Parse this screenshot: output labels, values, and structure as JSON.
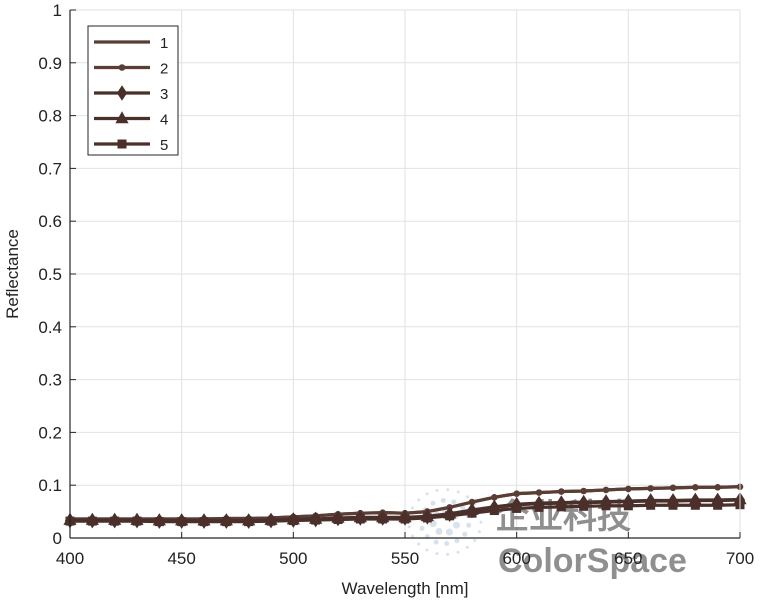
{
  "chart_data": {
    "type": "line",
    "xlabel": "Wavelength [nm]",
    "ylabel": "Reflectance",
    "xlim": [
      400,
      700
    ],
    "ylim": [
      0,
      1
    ],
    "xticks": [
      400,
      450,
      500,
      550,
      600,
      650,
      700
    ],
    "yticks": [
      0,
      0.1,
      0.2,
      0.3,
      0.4,
      0.5,
      0.6,
      0.7,
      0.8,
      0.9,
      1
    ],
    "ytick_labels": [
      "0",
      "0.1",
      "0.2",
      "0.3",
      "0.4",
      "0.5",
      "0.6",
      "0.7",
      "0.8",
      "0.9",
      "1"
    ],
    "grid": true,
    "legend_position": "top-left",
    "x": [
      400,
      410,
      420,
      430,
      440,
      450,
      460,
      470,
      480,
      490,
      500,
      510,
      520,
      530,
      540,
      550,
      560,
      570,
      580,
      590,
      600,
      610,
      620,
      630,
      640,
      650,
      660,
      670,
      680,
      690,
      700
    ],
    "series": [
      {
        "name": "1",
        "marker": "none",
        "color": "#5a3e36",
        "values": [
          0.036,
          0.036,
          0.036,
          0.036,
          0.036,
          0.036,
          0.036,
          0.037,
          0.037,
          0.038,
          0.04,
          0.042,
          0.045,
          0.047,
          0.048,
          0.047,
          0.05,
          0.058,
          0.068,
          0.077,
          0.084,
          0.086,
          0.088,
          0.089,
          0.091,
          0.093,
          0.094,
          0.095,
          0.096,
          0.096,
          0.097
        ]
      },
      {
        "name": "2",
        "marker": "circle",
        "color": "#5a3e36",
        "values": [
          0.036,
          0.036,
          0.036,
          0.036,
          0.036,
          0.036,
          0.036,
          0.037,
          0.037,
          0.038,
          0.04,
          0.042,
          0.045,
          0.047,
          0.048,
          0.047,
          0.05,
          0.058,
          0.068,
          0.077,
          0.084,
          0.086,
          0.088,
          0.089,
          0.091,
          0.093,
          0.094,
          0.095,
          0.096,
          0.096,
          0.097
        ]
      },
      {
        "name": "3",
        "marker": "diamond",
        "color": "#4a2f2a",
        "values": [
          0.033,
          0.033,
          0.033,
          0.033,
          0.032,
          0.032,
          0.032,
          0.032,
          0.032,
          0.033,
          0.034,
          0.035,
          0.037,
          0.038,
          0.038,
          0.038,
          0.04,
          0.045,
          0.052,
          0.058,
          0.063,
          0.065,
          0.066,
          0.067,
          0.068,
          0.069,
          0.07,
          0.07,
          0.071,
          0.071,
          0.072
        ]
      },
      {
        "name": "4",
        "marker": "triangle",
        "color": "#4a2f2a",
        "values": [
          0.034,
          0.034,
          0.034,
          0.034,
          0.033,
          0.033,
          0.033,
          0.033,
          0.033,
          0.034,
          0.035,
          0.036,
          0.038,
          0.039,
          0.039,
          0.039,
          0.041,
          0.046,
          0.053,
          0.059,
          0.064,
          0.066,
          0.067,
          0.068,
          0.069,
          0.07,
          0.071,
          0.071,
          0.072,
          0.072,
          0.073
        ]
      },
      {
        "name": "5",
        "marker": "square",
        "color": "#4a2f2a",
        "values": [
          0.032,
          0.032,
          0.032,
          0.032,
          0.031,
          0.031,
          0.031,
          0.031,
          0.031,
          0.032,
          0.033,
          0.034,
          0.035,
          0.036,
          0.036,
          0.036,
          0.038,
          0.042,
          0.047,
          0.052,
          0.056,
          0.058,
          0.059,
          0.06,
          0.061,
          0.061,
          0.062,
          0.062,
          0.062,
          0.062,
          0.063
        ]
      }
    ]
  },
  "watermark": {
    "cn_text": "企业科技",
    "en_text": "ColorSpace",
    "color": "#b9c9de"
  },
  "colors": {
    "grid": "#e2e2e2",
    "axis": "#262626",
    "text": "#222222"
  }
}
